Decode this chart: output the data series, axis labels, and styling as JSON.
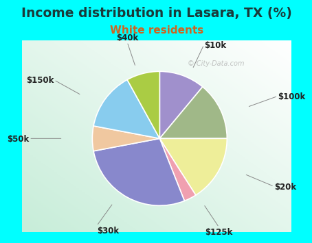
{
  "title": "Income distribution in Lasara, TX (%)",
  "subtitle": "White residents",
  "background_color": "#00FFFF",
  "slices": [
    {
      "label": "$10k",
      "value": 11,
      "color": "#A090CC"
    },
    {
      "label": "$100k",
      "value": 14,
      "color": "#A0B888"
    },
    {
      "label": "$20k",
      "value": 16,
      "color": "#EEEE99"
    },
    {
      "label": "$125k",
      "value": 3,
      "color": "#F0A0B0"
    },
    {
      "label": "$30k",
      "value": 28,
      "color": "#8888CC"
    },
    {
      "label": "$50k",
      "value": 6,
      "color": "#F0C8A0"
    },
    {
      "label": "$150k",
      "value": 14,
      "color": "#88CCEE"
    },
    {
      "label": "$40k",
      "value": 8,
      "color": "#AACC44"
    }
  ],
  "title_color": "#1a3a3a",
  "subtitle_color": "#CC6622",
  "title_fontsize": 13.5,
  "subtitle_fontsize": 11,
  "label_fontsize": 8.5,
  "watermark": "City-Data.com"
}
